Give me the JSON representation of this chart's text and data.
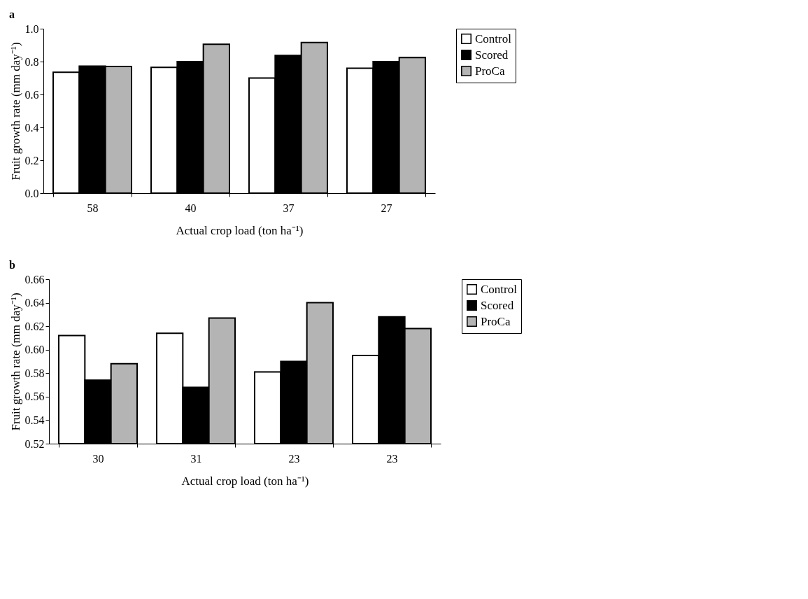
{
  "chart_data": [
    {
      "type": "bar",
      "title": "a",
      "xlabel": "Actual crop load (ton ha⁻¹)",
      "ylabel": "Fruit growth rate (mm day⁻¹)",
      "categories": [
        "58",
        "40",
        "37",
        "27"
      ],
      "series": [
        {
          "name": "Control",
          "color": "#ffffff",
          "values": [
            0.735,
            0.765,
            0.7,
            0.76
          ]
        },
        {
          "name": "Scored",
          "color": "#000000",
          "values": [
            0.772,
            0.8,
            0.837,
            0.8
          ]
        },
        {
          "name": "ProCa",
          "color": "#b4b4b4",
          "values": [
            0.77,
            0.905,
            0.916,
            0.825
          ]
        }
      ],
      "ylim": [
        0,
        1
      ],
      "yticks": [
        {
          "value": 0,
          "label": "0.0"
        },
        0.2,
        0.4,
        0.6,
        0.8,
        {
          "value": 1,
          "label": "1.0"
        }
      ],
      "grid": false,
      "legend": "right"
    },
    {
      "type": "bar",
      "title": "b",
      "xlabel": "Actual crop load (ton ha⁻¹)",
      "ylabel": "Fruit growth rate (mm day⁻¹)",
      "categories": [
        "30",
        "31",
        "23",
        "23"
      ],
      "series": [
        {
          "name": "Control",
          "color": "#ffffff",
          "values": [
            0.612,
            0.614,
            0.581,
            0.595
          ]
        },
        {
          "name": "Scored",
          "color": "#000000",
          "values": [
            0.574,
            0.568,
            0.59,
            0.628
          ]
        },
        {
          "name": "ProCa",
          "color": "#b4b4b4",
          "values": [
            0.588,
            0.627,
            0.64,
            0.618
          ]
        }
      ],
      "ylim": [
        0.52,
        0.66
      ],
      "yticks": [
        {
          "value": 0.52,
          "label": "0.52"
        },
        {
          "value": 0.54,
          "label": "0.54"
        },
        {
          "value": 0.56,
          "label": "0.56"
        },
        {
          "value": 0.58,
          "label": "0.58"
        },
        {
          "value": 0.6,
          "label": "0.60"
        },
        {
          "value": 0.62,
          "label": "0.62"
        },
        {
          "value": 0.64,
          "label": "0.64"
        },
        {
          "value": 0.66,
          "label": "0.66"
        }
      ],
      "grid": false,
      "legend": "right"
    }
  ]
}
